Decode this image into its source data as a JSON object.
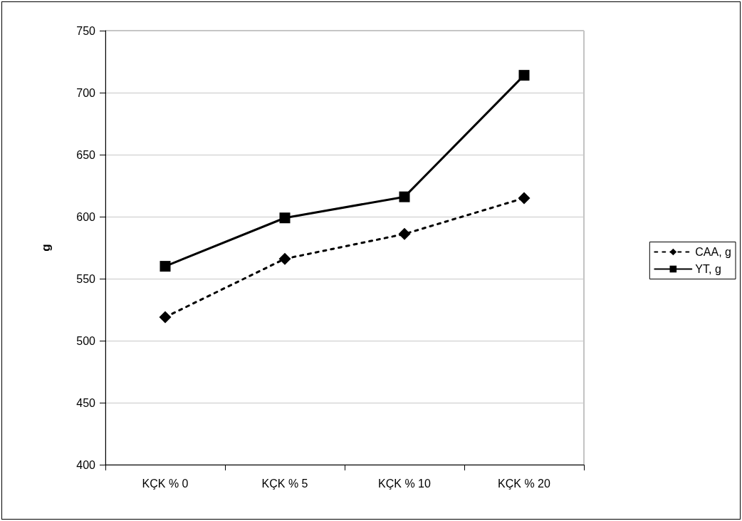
{
  "chart_data": {
    "type": "line",
    "ylabel": "g",
    "categories": [
      "KÇK % 0",
      "KÇK % 5",
      "KÇK % 10",
      "KÇK % 20"
    ],
    "series": [
      {
        "name": "CAA, g",
        "color": "#000000",
        "marker": "diamond",
        "line_style": "dotted",
        "values": [
          519,
          566,
          586,
          615
        ]
      },
      {
        "name": "YT, g",
        "color": "#000000",
        "marker": "square",
        "line_style": "solid",
        "values": [
          560,
          599,
          616,
          714
        ]
      }
    ],
    "ylim": [
      400,
      750
    ],
    "yticks": [
      400,
      450,
      500,
      550,
      600,
      650,
      700,
      750
    ],
    "grid": "y",
    "legend": "right"
  }
}
